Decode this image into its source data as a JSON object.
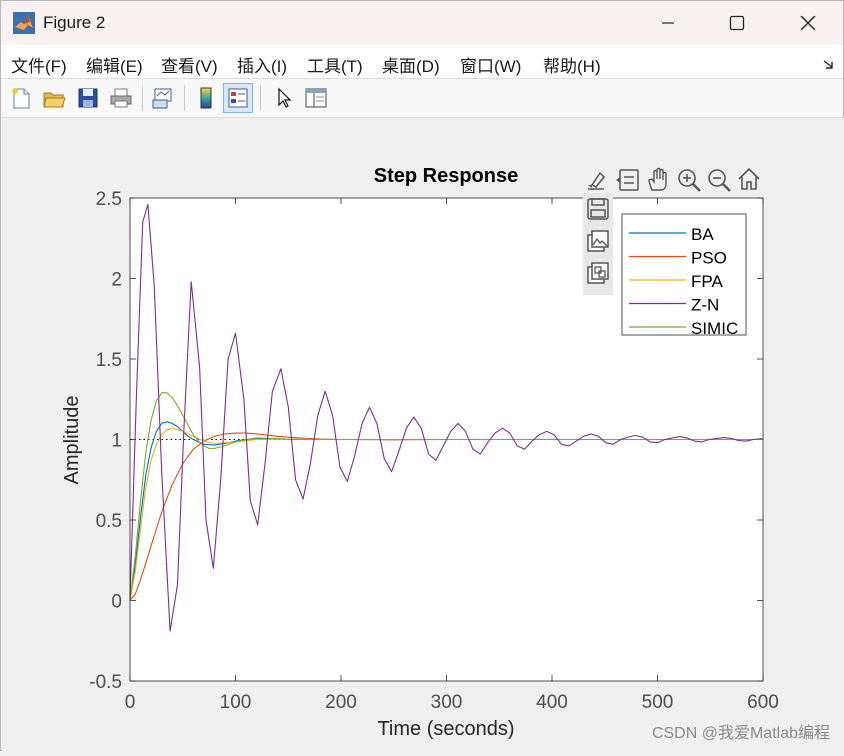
{
  "window": {
    "title": "Figure 2",
    "controls": {
      "minimize": "minimize",
      "maximize": "maximize",
      "close": "close"
    }
  },
  "menubar": {
    "items": [
      {
        "label": "文件(F)"
      },
      {
        "label": "编辑(E)"
      },
      {
        "label": "查看(V)"
      },
      {
        "label": "插入(I)"
      },
      {
        "label": "工具(T)"
      },
      {
        "label": "桌面(D)"
      },
      {
        "label": "窗口(W)"
      },
      {
        "label": "帮助(H)"
      }
    ]
  },
  "toolbar": {
    "buttons": [
      {
        "icon": "new-figure-icon"
      },
      {
        "icon": "open-file-icon"
      },
      {
        "icon": "save-icon"
      },
      {
        "icon": "print-icon"
      },
      {
        "icon": "link-plot-icon"
      },
      {
        "icon": "insert-colorbar-icon"
      },
      {
        "icon": "insert-legend-icon",
        "active": true
      },
      {
        "icon": "edit-plot-icon"
      },
      {
        "icon": "property-inspector-icon"
      }
    ]
  },
  "axes_toolbar": {
    "icons": [
      "brush-icon",
      "data-tips-icon",
      "pan-icon",
      "zoom-in-icon",
      "zoom-out-icon",
      "home-icon",
      "save-axes-icon",
      "copy-image-icon",
      "copy-vector-icon"
    ]
  },
  "watermark": "CSDN @我爱Matlab编程",
  "chart_data": {
    "type": "line",
    "title": "Step Response",
    "xlabel": "Time (seconds)",
    "ylabel": "Amplitude",
    "xlim": [
      0,
      600
    ],
    "ylim": [
      -0.5,
      2.5
    ],
    "xticks": [
      "0",
      "100",
      "200",
      "300",
      "400",
      "500",
      "600"
    ],
    "yticks": [
      "-0.5",
      "0",
      "0.5",
      "1",
      "1.5",
      "2",
      "2.5"
    ],
    "grid": false,
    "legend_position": "top-right",
    "reference_line": {
      "y": 1,
      "style": "dotted",
      "color": "#000000"
    },
    "series": [
      {
        "name": "BA",
        "color": "#0072bd",
        "x": [
          0,
          5,
          10,
          15,
          20,
          25,
          30,
          35,
          40,
          45,
          50,
          55,
          60,
          70,
          80,
          90,
          100,
          110,
          120,
          140,
          160,
          200,
          300,
          600
        ],
        "y": [
          0,
          0.22,
          0.52,
          0.78,
          0.95,
          1.05,
          1.1,
          1.11,
          1.1,
          1.08,
          1.05,
          1.02,
          1.0,
          0.97,
          0.965,
          0.975,
          0.99,
          1.0,
          1.005,
          1.003,
          1.0,
          1.0,
          1.0,
          1.0
        ]
      },
      {
        "name": "PSO",
        "color": "#d95319",
        "x": [
          0,
          5,
          10,
          20,
          30,
          40,
          50,
          60,
          70,
          80,
          90,
          100,
          110,
          120,
          140,
          160,
          180,
          200,
          250,
          300,
          600
        ],
        "y": [
          0,
          0.04,
          0.13,
          0.34,
          0.55,
          0.72,
          0.85,
          0.94,
          0.99,
          1.02,
          1.035,
          1.04,
          1.04,
          1.035,
          1.02,
          1.01,
          1.003,
          1.0,
          0.998,
          1.0,
          1.0
        ]
      },
      {
        "name": "FPA",
        "color": "#edb120",
        "x": [
          0,
          5,
          10,
          15,
          20,
          25,
          30,
          35,
          40,
          45,
          50,
          60,
          70,
          80,
          100,
          120,
          150,
          200,
          600
        ],
        "y": [
          0,
          0.18,
          0.45,
          0.7,
          0.87,
          0.97,
          1.03,
          1.06,
          1.07,
          1.06,
          1.05,
          1.02,
          0.99,
          0.975,
          0.985,
          1.0,
          1.002,
          1.0,
          1.0
        ]
      },
      {
        "name": "Z-N",
        "color": "#7e2f8e",
        "x": [
          0,
          6,
          12,
          17,
          23,
          30,
          38,
          45,
          51,
          58,
          66,
          72,
          79,
          86,
          93,
          100,
          108,
          114,
          121,
          128,
          135,
          143,
          150,
          157,
          164,
          171,
          178,
          185,
          192,
          199,
          206,
          213,
          220,
          227,
          234,
          241,
          248,
          255,
          262,
          269,
          276,
          283,
          290,
          297,
          304,
          311,
          318,
          325,
          332,
          339,
          346,
          353,
          360,
          367,
          374,
          381,
          388,
          395,
          402,
          409,
          416,
          423,
          430,
          437,
          444,
          451,
          458,
          465,
          472,
          479,
          486,
          493,
          500,
          507,
          514,
          521,
          528,
          535,
          542,
          549,
          556,
          563,
          570,
          577,
          584,
          591,
          598,
          600
        ],
        "y": [
          0,
          1.25,
          2.35,
          2.46,
          1.95,
          0.8,
          -0.19,
          0.1,
          1.05,
          1.98,
          1.45,
          0.5,
          0.2,
          0.75,
          1.5,
          1.66,
          1.25,
          0.62,
          0.47,
          0.85,
          1.3,
          1.44,
          1.2,
          0.75,
          0.63,
          0.85,
          1.15,
          1.3,
          1.15,
          0.83,
          0.74,
          0.9,
          1.1,
          1.2,
          1.1,
          0.88,
          0.8,
          0.93,
          1.07,
          1.14,
          1.07,
          0.91,
          0.87,
          0.96,
          1.05,
          1.1,
          1.05,
          0.94,
          0.91,
          0.98,
          1.04,
          1.07,
          1.04,
          0.96,
          0.94,
          0.99,
          1.03,
          1.05,
          1.03,
          0.97,
          0.96,
          0.99,
          1.02,
          1.035,
          1.02,
          0.98,
          0.97,
          1.0,
          1.015,
          1.025,
          1.015,
          0.985,
          0.98,
          1.0,
          1.01,
          1.018,
          1.01,
          0.99,
          0.985,
          1.0,
          1.007,
          1.012,
          1.007,
          0.993,
          0.99,
          1.0,
          1.005,
          1.0
        ]
      },
      {
        "name": "SIMIC",
        "color": "#77ac30",
        "x": [
          0,
          5,
          10,
          15,
          20,
          25,
          30,
          35,
          40,
          45,
          50,
          55,
          60,
          65,
          70,
          75,
          80,
          90,
          100,
          110,
          120,
          140,
          160,
          200,
          600
        ],
        "y": [
          0,
          0.28,
          0.62,
          0.92,
          1.12,
          1.24,
          1.29,
          1.29,
          1.26,
          1.21,
          1.15,
          1.09,
          1.03,
          0.99,
          0.96,
          0.945,
          0.945,
          0.96,
          0.985,
          1.0,
          1.01,
          1.005,
          1.0,
          1.0,
          1.0
        ]
      }
    ]
  }
}
